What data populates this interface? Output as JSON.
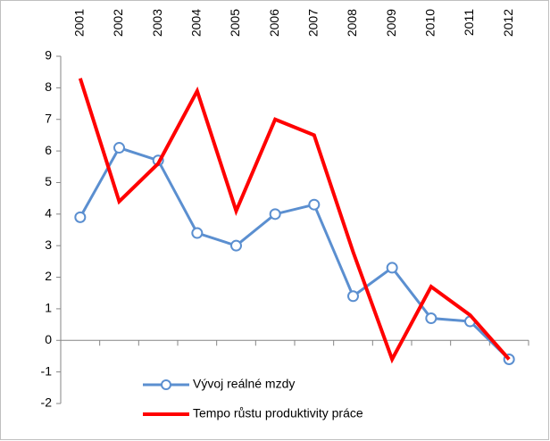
{
  "chart_data": {
    "type": "line",
    "categories": [
      "2001",
      "2002",
      "2003",
      "2004",
      "2005",
      "2006",
      "2007",
      "2008",
      "2009",
      "2010",
      "2011",
      "2012"
    ],
    "series": [
      {
        "name": "Vývoj reálné mzdy",
        "color": "#5b8fd0",
        "marker": "circle",
        "values": [
          3.9,
          6.1,
          5.7,
          3.4,
          3.0,
          4.0,
          4.3,
          1.4,
          2.3,
          0.7,
          0.6,
          -0.6
        ]
      },
      {
        "name": "Tempo růstu produktivity práce",
        "color": "#ff0000",
        "marker": "none",
        "values": [
          8.3,
          4.4,
          5.6,
          7.9,
          4.1,
          7.0,
          6.5,
          2.8,
          -0.6,
          1.7,
          0.8,
          -0.6
        ]
      }
    ],
    "ylim": [
      -2,
      9
    ],
    "yticks": [
      -2,
      -1,
      0,
      1,
      2,
      3,
      4,
      5,
      6,
      7,
      8,
      9
    ],
    "grid": false,
    "legend": "lower left"
  }
}
